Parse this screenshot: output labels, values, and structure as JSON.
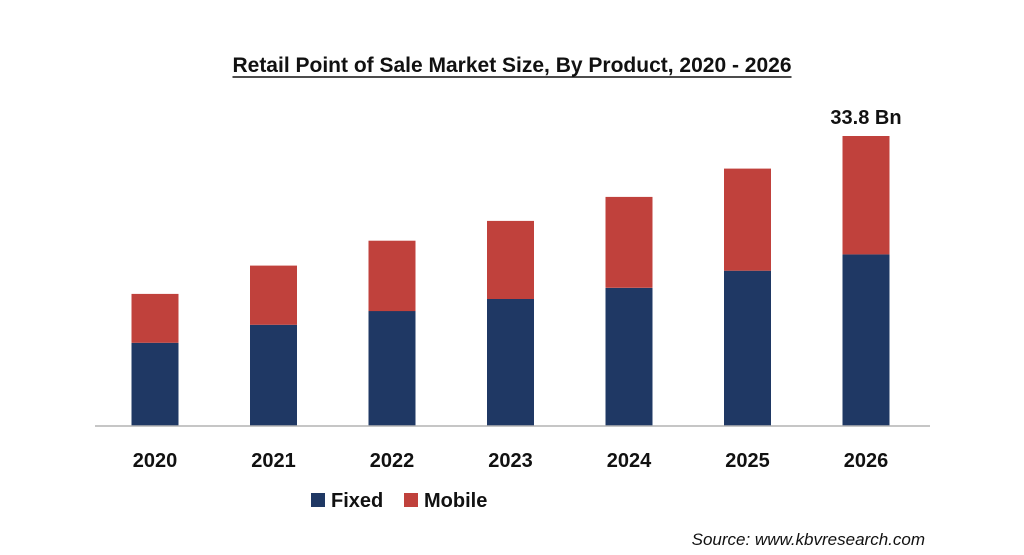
{
  "chart_data": {
    "type": "bar",
    "stacked": true,
    "title": "Retail Point of Sale Market Size, By Product, 2020 - 2026",
    "xlabel": "",
    "ylabel": "",
    "categories": [
      "2020",
      "2021",
      "2022",
      "2023",
      "2024",
      "2025",
      "2026"
    ],
    "series": [
      {
        "name": "Fixed",
        "color": "#1f3864",
        "values": [
          9.7,
          11.8,
          13.4,
          14.8,
          16.1,
          18.1,
          20.0
        ]
      },
      {
        "name": "Mobile",
        "color": "#c0413c",
        "values": [
          5.7,
          6.9,
          8.2,
          9.1,
          10.6,
          11.9,
          13.8
        ]
      }
    ],
    "annotations": [
      {
        "category": "2026",
        "text": "33.8 Bn"
      }
    ],
    "ylim": [
      0,
      34
    ],
    "grid": false,
    "y_axis_shown": false,
    "legend_position": "bottom"
  },
  "source": "Source: www.kbvresearch.com"
}
